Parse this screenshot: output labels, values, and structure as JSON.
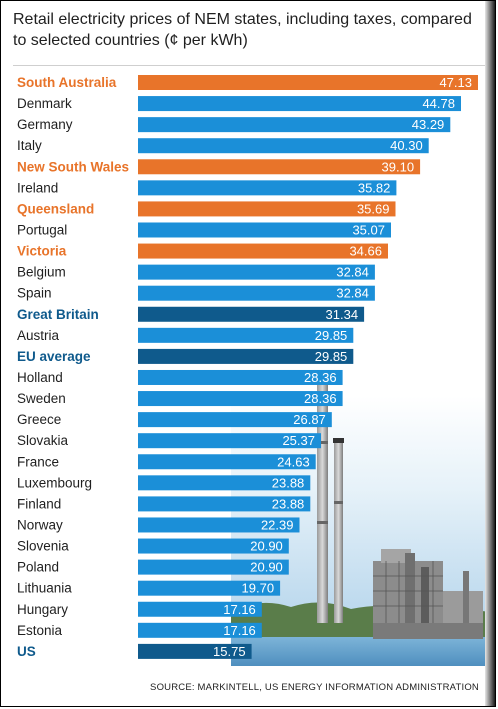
{
  "header": {
    "title": "Retail electricity prices of NEM states, including taxes, compared to selected countries (¢ per kWh)"
  },
  "footer": {
    "source": "SOURCE: MARKINTELL, US ENERGY INFORMATION ADMINISTRATION"
  },
  "colors": {
    "nem_state": "#e8742a",
    "country": "#1b8fd8",
    "highlight": "#0f5a8c",
    "nem_label": "#e8742a",
    "highlight_label": "#0f5a8c",
    "country_label": "#1f1f1f"
  },
  "chart_data": {
    "type": "bar",
    "orientation": "horizontal",
    "title": "Retail electricity prices of NEM states, including taxes, compared to selected countries (¢ per kWh)",
    "xlabel": "",
    "ylabel": "",
    "xlim": [
      0,
      47.13
    ],
    "grid": false,
    "legend": "none",
    "bars": [
      {
        "label": "South Australia",
        "value": 47.13,
        "group": "nem"
      },
      {
        "label": "Denmark",
        "value": 44.78,
        "group": "country"
      },
      {
        "label": "Germany",
        "value": 43.29,
        "group": "country"
      },
      {
        "label": "Italy",
        "value": 40.3,
        "group": "country"
      },
      {
        "label": "New South Wales",
        "value": 39.1,
        "group": "nem"
      },
      {
        "label": "Ireland",
        "value": 35.82,
        "group": "country"
      },
      {
        "label": "Queensland",
        "value": 35.69,
        "group": "nem"
      },
      {
        "label": "Portugal",
        "value": 35.07,
        "group": "country"
      },
      {
        "label": "Victoria",
        "value": 34.66,
        "group": "nem"
      },
      {
        "label": "Belgium",
        "value": 32.84,
        "group": "country"
      },
      {
        "label": "Spain",
        "value": 32.84,
        "group": "country"
      },
      {
        "label": "Great Britain",
        "value": 31.34,
        "group": "highlight"
      },
      {
        "label": "Austria",
        "value": 29.85,
        "group": "country"
      },
      {
        "label": "EU average",
        "value": 29.85,
        "group": "highlight"
      },
      {
        "label": "Holland",
        "value": 28.36,
        "group": "country"
      },
      {
        "label": "Sweden",
        "value": 28.36,
        "group": "country"
      },
      {
        "label": "Greece",
        "value": 26.87,
        "group": "country"
      },
      {
        "label": "Slovakia",
        "value": 25.37,
        "group": "country"
      },
      {
        "label": "France",
        "value": 24.63,
        "group": "country"
      },
      {
        "label": "Luxembourg",
        "value": 23.88,
        "group": "country"
      },
      {
        "label": "Finland",
        "value": 23.88,
        "group": "country"
      },
      {
        "label": "Norway",
        "value": 22.39,
        "group": "country"
      },
      {
        "label": "Slovenia",
        "value": 20.9,
        "group": "country"
      },
      {
        "label": "Poland",
        "value": 20.9,
        "group": "country"
      },
      {
        "label": "Lithuania",
        "value": 19.7,
        "group": "country"
      },
      {
        "label": "Hungary",
        "value": 17.16,
        "group": "country"
      },
      {
        "label": "Estonia",
        "value": 17.16,
        "group": "country"
      },
      {
        "label": "US",
        "value": 15.75,
        "group": "highlight"
      }
    ]
  }
}
